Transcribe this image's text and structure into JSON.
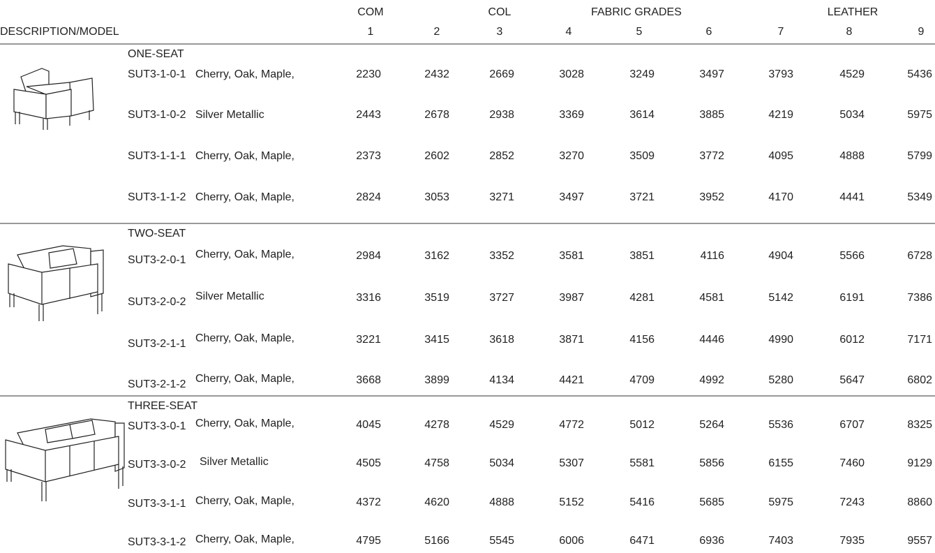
{
  "header": {
    "groups": [
      "COM",
      "COL",
      "FABRIC GRADES",
      "LEATHER"
    ],
    "description_label": "DESCRIPTION/MODEL",
    "columns": [
      "1",
      "2",
      "3",
      "4",
      "5",
      "6",
      "7",
      "8",
      "9"
    ]
  },
  "sections": [
    {
      "title": "ONE-SEAT",
      "rows": [
        {
          "model": "SUT3-1-0-1",
          "finish": "Cherry, Oak, Maple,",
          "prices": [
            2230,
            2432,
            2669,
            3028,
            3249,
            3497,
            3793,
            4529,
            5436
          ]
        },
        {
          "model": "SUT3-1-0-2",
          "finish": "Silver Metallic",
          "prices": [
            2443,
            2678,
            2938,
            3369,
            3614,
            3885,
            4219,
            5034,
            5975
          ]
        },
        {
          "model": "SUT3-1-1-1",
          "finish": "Cherry, Oak, Maple,",
          "prices": [
            2373,
            2602,
            2852,
            3270,
            3509,
            3772,
            4095,
            4888,
            5799
          ]
        },
        {
          "model": "SUT3-1-1-2",
          "finish": "Cherry, Oak, Maple,",
          "prices": [
            2824,
            3053,
            3271,
            3497,
            3721,
            3952,
            4170,
            4441,
            5349
          ]
        }
      ]
    },
    {
      "title": "TWO-SEAT",
      "rows": [
        {
          "model": "SUT3-2-0-1",
          "finish": "Cherry, Oak, Maple,",
          "prices": [
            2984,
            3162,
            3352,
            3581,
            3851,
            4116,
            4904,
            5566,
            6728
          ]
        },
        {
          "model": "SUT3-2-0-2",
          "finish": "Silver Metallic",
          "prices": [
            3316,
            3519,
            3727,
            3987,
            4281,
            4581,
            5142,
            6191,
            7386
          ]
        },
        {
          "model": "SUT3-2-1-1",
          "finish": "Cherry, Oak, Maple,",
          "prices": [
            3221,
            3415,
            3618,
            3871,
            4156,
            4446,
            4990,
            6012,
            7171
          ]
        },
        {
          "model": "SUT3-2-1-2",
          "finish": "Cherry, Oak, Maple,",
          "prices": [
            3668,
            3899,
            4134,
            4421,
            4709,
            4992,
            5280,
            5647,
            6802
          ]
        }
      ]
    },
    {
      "title": "THREE-SEAT",
      "rows": [
        {
          "model": "SUT3-3-0-1",
          "finish": "Cherry, Oak, Maple,",
          "prices": [
            4045,
            4278,
            4529,
            4772,
            5012,
            5264,
            5536,
            6707,
            8325
          ]
        },
        {
          "model": "SUT3-3-0-2",
          "finish": "Silver Metallic",
          "prices": [
            4505,
            4758,
            5034,
            5307,
            5581,
            5856,
            6155,
            7460,
            9129
          ]
        },
        {
          "model": "SUT3-3-1-1",
          "finish": "Cherry, Oak, Maple,",
          "prices": [
            4372,
            4620,
            4888,
            5152,
            5416,
            5685,
            5975,
            7243,
            8860
          ]
        },
        {
          "model": "SUT3-3-1-2",
          "finish": "Cherry, Oak, Maple,",
          "prices": [
            4795,
            5166,
            5545,
            6006,
            6471,
            6936,
            7403,
            7935,
            9557
          ]
        }
      ]
    }
  ]
}
